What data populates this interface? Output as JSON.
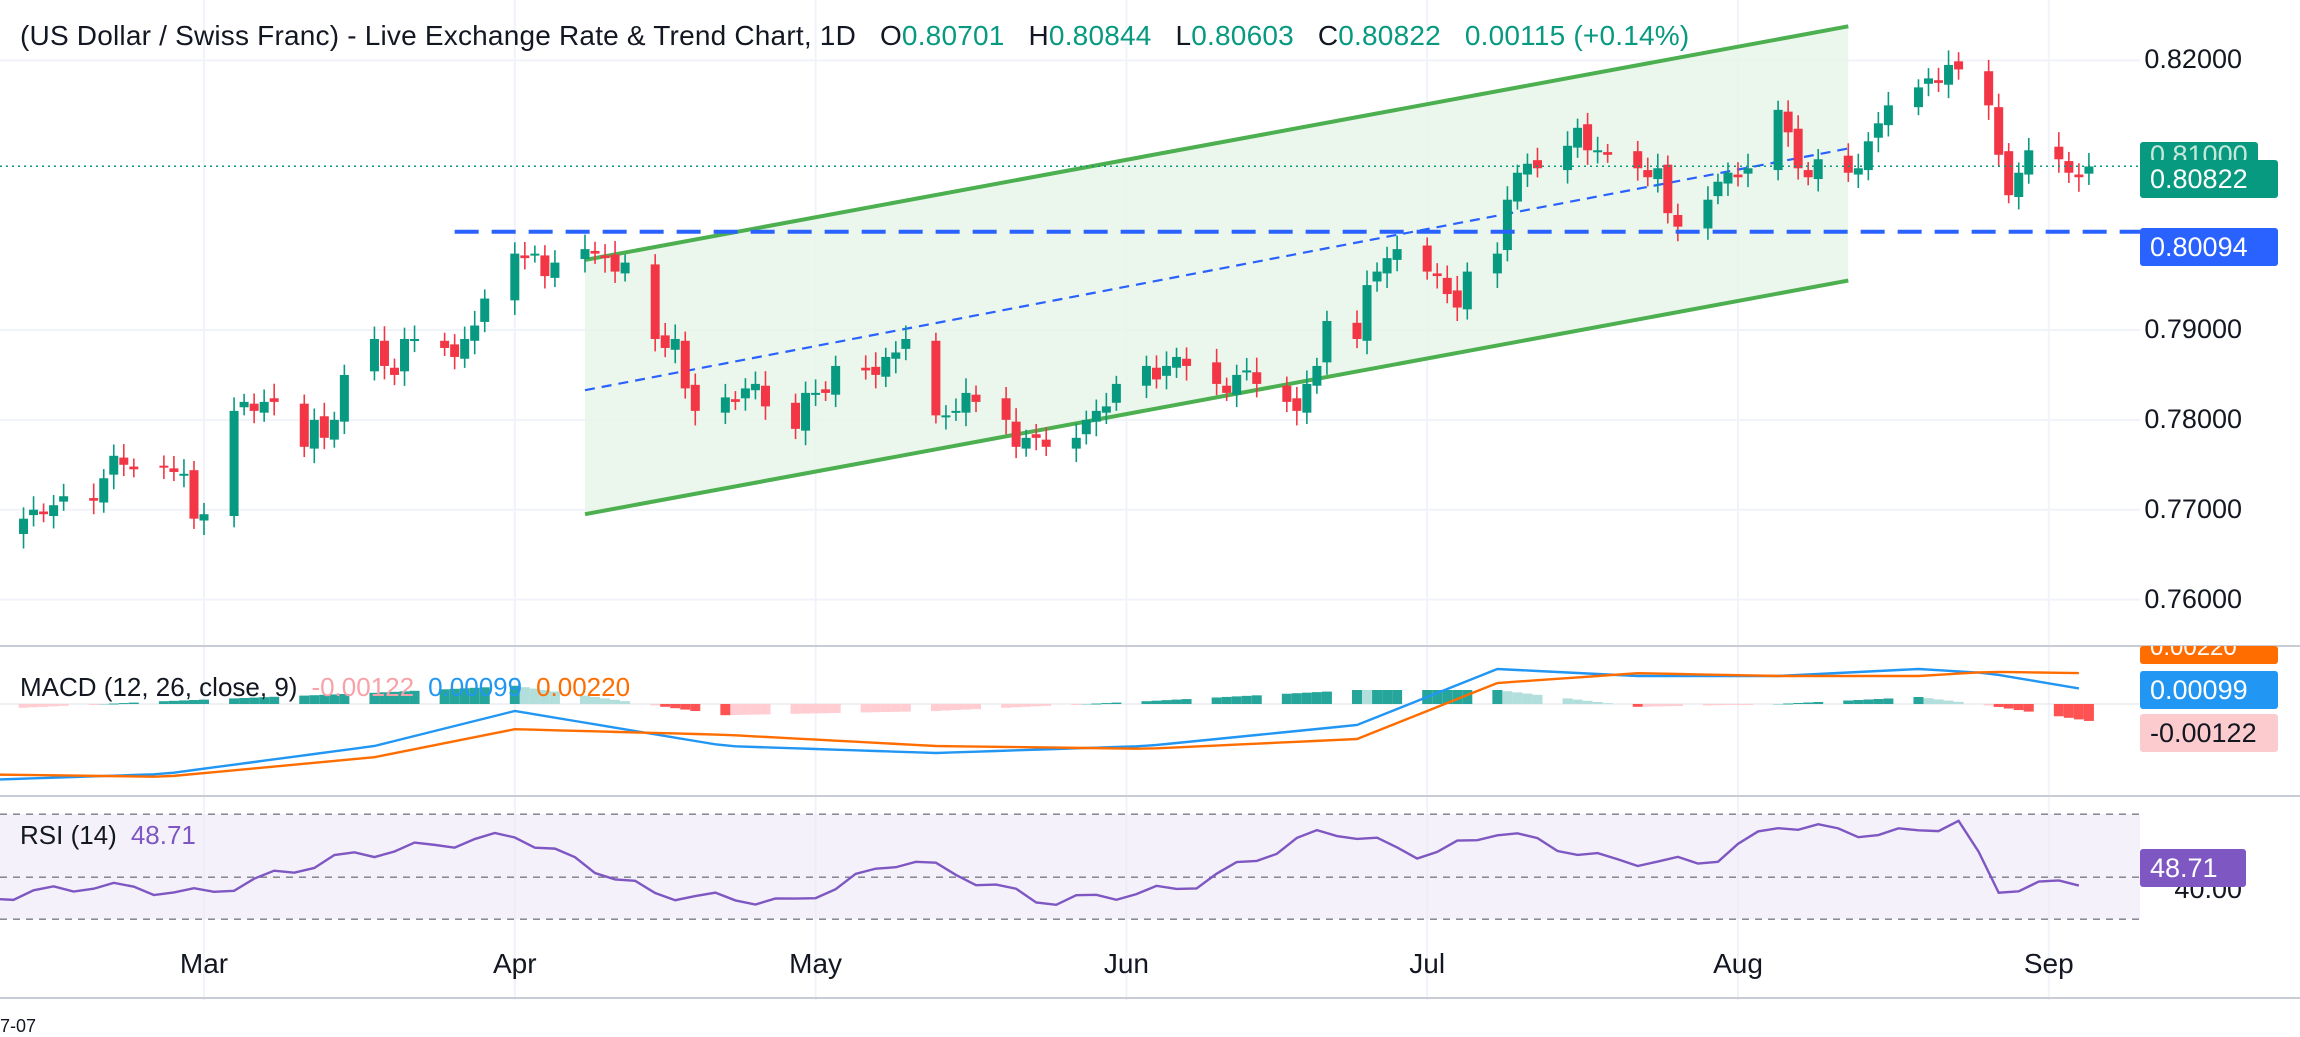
{
  "header": {
    "title": "(US Dollar / Swiss Franc) - Live Exchange Rate & Trend Chart, 1D",
    "open_label": "O",
    "open": "0.80701",
    "high_label": "H",
    "high": "0.80844",
    "low_label": "L",
    "low": "0.80603",
    "close_label": "C",
    "close": "0.80822",
    "change": "0.00115 (+0.14%)"
  },
  "price_tags": {
    "last_price": "0.80822",
    "support_level": "0.80094",
    "covered": "0.81000"
  },
  "macd": {
    "title": "MACD (12, 26, close, 9)",
    "hist_value": "-0.00122",
    "macd_value": "0.00099",
    "signal_value": "0.00220",
    "tag_signal": "0.00220"
  },
  "rsi": {
    "title": "RSI (14)",
    "value": "48.71",
    "axis_label": "40.00"
  },
  "bottom_text": "7-07",
  "colors": {
    "up": "#089981",
    "down": "#f23645",
    "channel": "#4caf50",
    "channel_fill": "#e8f5e9",
    "support": "#2962ff",
    "macd": "#2196f3",
    "signal": "#ff6d00",
    "rsi": "#7e57c2",
    "rsi_band": "#ede7f6"
  },
  "chart_data": [
    {
      "type": "candlestick",
      "title": "(US Dollar / Swiss Franc) - Live Exchange Rate & Trend Chart, 1D",
      "ylim": [
        0.7555,
        0.8245
      ],
      "y_ticks": [
        "0.82000",
        "0.79000",
        "0.78000",
        "0.77000",
        "0.76000"
      ],
      "x_ticks": [
        "Mar",
        "Apr",
        "May",
        "Jun",
        "Jul",
        "Aug",
        "Sep"
      ],
      "x_tick_dates": [
        "2024-03-01",
        "2024-04-01",
        "2024-05-01",
        "2024-06-01",
        "2024-07-01",
        "2024-08-01",
        "2024-09-01"
      ],
      "grid": true,
      "close_series": [
        [
          "2024-02-05",
          0.765
        ],
        [
          "2024-02-06",
          0.768
        ],
        [
          "2024-02-07",
          0.77
        ],
        [
          "2024-02-08",
          0.769
        ],
        [
          "2024-02-09",
          0.7675
        ],
        [
          "2024-02-12",
          0.769
        ],
        [
          "2024-02-13",
          0.77
        ],
        [
          "2024-02-14",
          0.7695
        ],
        [
          "2024-02-15",
          0.7705
        ],
        [
          "2024-02-16",
          0.7715
        ],
        [
          "2024-02-19",
          0.771
        ],
        [
          "2024-02-20",
          0.7735
        ],
        [
          "2024-02-21",
          0.776
        ],
        [
          "2024-02-22",
          0.775
        ],
        [
          "2024-02-23",
          0.7745
        ],
        [
          "2024-02-26",
          0.7748
        ],
        [
          "2024-02-27",
          0.7742
        ],
        [
          "2024-02-28",
          0.774
        ],
        [
          "2024-02-29",
          0.769
        ],
        [
          "2024-03-01",
          0.7695
        ],
        [
          "2024-03-04",
          0.781
        ],
        [
          "2024-03-05",
          0.782
        ],
        [
          "2024-03-06",
          0.781
        ],
        [
          "2024-03-07",
          0.782
        ],
        [
          "2024-03-08",
          0.782
        ],
        [
          "2024-03-11",
          0.777
        ],
        [
          "2024-03-12",
          0.78
        ],
        [
          "2024-03-13",
          0.778
        ],
        [
          "2024-03-14",
          0.78
        ],
        [
          "2024-03-15",
          0.785
        ],
        [
          "2024-03-18",
          0.789
        ],
        [
          "2024-03-19",
          0.786
        ],
        [
          "2024-03-20",
          0.785
        ],
        [
          "2024-03-21",
          0.789
        ],
        [
          "2024-03-22",
          0.789
        ],
        [
          "2024-03-25",
          0.788
        ],
        [
          "2024-03-26",
          0.787
        ],
        [
          "2024-03-27",
          0.789
        ],
        [
          "2024-03-28",
          0.7905
        ],
        [
          "2024-03-29",
          0.7935
        ],
        [
          "2024-04-01",
          0.7985
        ],
        [
          "2024-04-02",
          0.798
        ],
        [
          "2024-04-03",
          0.7985
        ],
        [
          "2024-04-04",
          0.796
        ],
        [
          "2024-04-05",
          0.7975
        ],
        [
          "2024-04-08",
          0.799
        ],
        [
          "2024-04-09",
          0.7985
        ],
        [
          "2024-04-10",
          0.798
        ],
        [
          "2024-04-11",
          0.7965
        ],
        [
          "2024-04-12",
          0.7975
        ],
        [
          "2024-04-15",
          0.789
        ],
        [
          "2024-04-16",
          0.788
        ],
        [
          "2024-04-17",
          0.789
        ],
        [
          "2024-04-18",
          0.7835
        ],
        [
          "2024-04-19",
          0.781
        ],
        [
          "2024-04-22",
          0.7825
        ],
        [
          "2024-04-23",
          0.782
        ],
        [
          "2024-04-24",
          0.7835
        ],
        [
          "2024-04-25",
          0.784
        ],
        [
          "2024-04-26",
          0.7815
        ],
        [
          "2024-04-29",
          0.779
        ],
        [
          "2024-04-30",
          0.783
        ],
        [
          "2024-05-01",
          0.783
        ],
        [
          "2024-05-02",
          0.783
        ],
        [
          "2024-05-03",
          0.786
        ],
        [
          "2024-05-06",
          0.7855
        ],
        [
          "2024-05-07",
          0.785
        ],
        [
          "2024-05-08",
          0.787
        ],
        [
          "2024-05-09",
          0.7875
        ],
        [
          "2024-05-10",
          0.789
        ],
        [
          "2024-05-13",
          0.7805
        ],
        [
          "2024-05-14",
          0.7805
        ],
        [
          "2024-05-15",
          0.781
        ],
        [
          "2024-05-16",
          0.783
        ],
        [
          "2024-05-17",
          0.782
        ],
        [
          "2024-05-20",
          0.78
        ],
        [
          "2024-05-21",
          0.777
        ],
        [
          "2024-05-22",
          0.778
        ],
        [
          "2024-05-23",
          0.778
        ],
        [
          "2024-05-24",
          0.777
        ],
        [
          "2024-05-27",
          0.778
        ],
        [
          "2024-05-28",
          0.78
        ],
        [
          "2024-05-29",
          0.781
        ],
        [
          "2024-05-30",
          0.7815
        ],
        [
          "2024-05-31",
          0.784
        ],
        [
          "2024-06-03",
          0.786
        ],
        [
          "2024-06-04",
          0.7845
        ],
        [
          "2024-06-05",
          0.786
        ],
        [
          "2024-06-06",
          0.787
        ],
        [
          "2024-06-07",
          0.786
        ],
        [
          "2024-06-10",
          0.784
        ],
        [
          "2024-06-11",
          0.783
        ],
        [
          "2024-06-12",
          0.785
        ],
        [
          "2024-06-13",
          0.7855
        ],
        [
          "2024-06-14",
          0.784
        ],
        [
          "2024-06-17",
          0.782
        ],
        [
          "2024-06-18",
          0.781
        ],
        [
          "2024-06-19",
          0.784
        ],
        [
          "2024-06-20",
          0.786
        ],
        [
          "2024-06-21",
          0.791
        ],
        [
          "2024-06-24",
          0.789
        ],
        [
          "2024-06-25",
          0.795
        ],
        [
          "2024-06-26",
          0.7965
        ],
        [
          "2024-06-27",
          0.798
        ],
        [
          "2024-06-28",
          0.799
        ],
        [
          "2024-07-01",
          0.7965
        ],
        [
          "2024-07-02",
          0.796
        ],
        [
          "2024-07-03",
          0.794
        ],
        [
          "2024-07-04",
          0.7925
        ],
        [
          "2024-07-05",
          0.7965
        ],
        [
          "2024-07-08",
          0.7985
        ],
        [
          "2024-07-09",
          0.8045
        ],
        [
          "2024-07-10",
          0.8075
        ],
        [
          "2024-07-11",
          0.8085
        ],
        [
          "2024-07-12",
          0.808
        ],
        [
          "2024-07-15",
          0.8105
        ],
        [
          "2024-07-16",
          0.8125
        ],
        [
          "2024-07-17",
          0.81
        ],
        [
          "2024-07-18",
          0.81
        ],
        [
          "2024-07-19",
          0.8095
        ],
        [
          "2024-07-22",
          0.808
        ],
        [
          "2024-07-23",
          0.807
        ],
        [
          "2024-07-24",
          0.808
        ],
        [
          "2024-07-25",
          0.803
        ],
        [
          "2024-07-26",
          0.8015
        ],
        [
          "2024-07-29",
          0.8045
        ],
        [
          "2024-07-30",
          0.8065
        ],
        [
          "2024-07-31",
          0.8075
        ],
        [
          "2024-08-01",
          0.807
        ],
        [
          "2024-08-02",
          0.808
        ],
        [
          "2024-08-05",
          0.8145
        ],
        [
          "2024-08-06",
          0.812
        ],
        [
          "2024-08-07",
          0.808
        ],
        [
          "2024-08-08",
          0.807
        ],
        [
          "2024-08-09",
          0.809
        ],
        [
          "2024-08-12",
          0.8075
        ],
        [
          "2024-08-13",
          0.808
        ],
        [
          "2024-08-14",
          0.811
        ],
        [
          "2024-08-15",
          0.813
        ],
        [
          "2024-08-16",
          0.815
        ],
        [
          "2024-08-19",
          0.817
        ],
        [
          "2024-08-20",
          0.818
        ],
        [
          "2024-08-21",
          0.8175
        ],
        [
          "2024-08-22",
          0.8195
        ],
        [
          "2024-08-23",
          0.819
        ],
        [
          "2024-08-26",
          0.815
        ],
        [
          "2024-08-27",
          0.8095
        ],
        [
          "2024-08-28",
          0.805
        ],
        [
          "2024-08-29",
          0.8075
        ],
        [
          "2024-08-30",
          0.81
        ],
        [
          "2024-09-02",
          0.809
        ],
        [
          "2024-09-03",
          0.8075
        ],
        [
          "2024-09-04",
          0.807
        ],
        [
          "2024-09-05",
          0.8082
        ]
      ],
      "last_price": 0.80822,
      "horizontal_support": 0.80094,
      "ascending_channel": {
        "upper": [
          [
            "2024-04-08",
            0.7978
          ],
          [
            "2024-08-12",
            0.8238
          ]
        ],
        "lower": [
          [
            "2024-04-08",
            0.7695
          ],
          [
            "2024-08-12",
            0.7955
          ]
        ],
        "mid": [
          [
            "2024-04-08",
            0.7833
          ],
          [
            "2024-08-12",
            0.8102
          ]
        ]
      }
    },
    {
      "type": "line",
      "title": "MACD (12, 26, close, 9)",
      "series": [
        {
          "name": "MACD",
          "x": [
            "2024-02-05",
            "2024-02-26",
            "2024-03-18",
            "2024-04-01",
            "2024-04-22",
            "2024-05-13",
            "2024-06-03",
            "2024-06-24",
            "2024-07-08",
            "2024-07-22",
            "2024-08-05",
            "2024-08-19",
            "2024-08-26",
            "2024-09-05"
          ],
          "values": [
            -0.0055,
            -0.005,
            -0.003,
            -0.0005,
            -0.003,
            -0.0035,
            -0.003,
            -0.0015,
            0.0025,
            0.002,
            0.002,
            0.0025,
            0.0022,
            0.00099
          ]
        },
        {
          "name": "Signal",
          "x": [
            "2024-02-05",
            "2024-02-26",
            "2024-03-18",
            "2024-04-01",
            "2024-04-22",
            "2024-05-13",
            "2024-06-03",
            "2024-06-24",
            "2024-07-08",
            "2024-07-22",
            "2024-08-05",
            "2024-08-19",
            "2024-08-26",
            "2024-09-05"
          ],
          "values": [
            -0.005,
            -0.0052,
            -0.0038,
            -0.0018,
            -0.0022,
            -0.003,
            -0.0032,
            -0.0025,
            0.0015,
            0.0022,
            0.002,
            0.002,
            0.0023,
            0.0022
          ]
        }
      ],
      "histogram_last": -0.00122
    },
    {
      "type": "line",
      "title": "RSI (14)",
      "ylim": [
        32,
        82
      ],
      "y_ticks": [
        "40.00"
      ],
      "series": [
        {
          "name": "RSI",
          "x": [
            "2024-02-05",
            "2024-02-19",
            "2024-03-01",
            "2024-03-15",
            "2024-04-01",
            "2024-04-15",
            "2024-04-29",
            "2024-05-10",
            "2024-05-24",
            "2024-06-07",
            "2024-06-21",
            "2024-07-01",
            "2024-07-08",
            "2024-07-19",
            "2024-07-29",
            "2024-08-05",
            "2024-08-16",
            "2024-08-23",
            "2024-08-27",
            "2024-09-05"
          ],
          "values": [
            38,
            46,
            42,
            60,
            70,
            42,
            38,
            59,
            38,
            45,
            73,
            60,
            72,
            58,
            57,
            75,
            70,
            76,
            44,
            48.71
          ]
        }
      ],
      "last_value": 48.71
    }
  ]
}
